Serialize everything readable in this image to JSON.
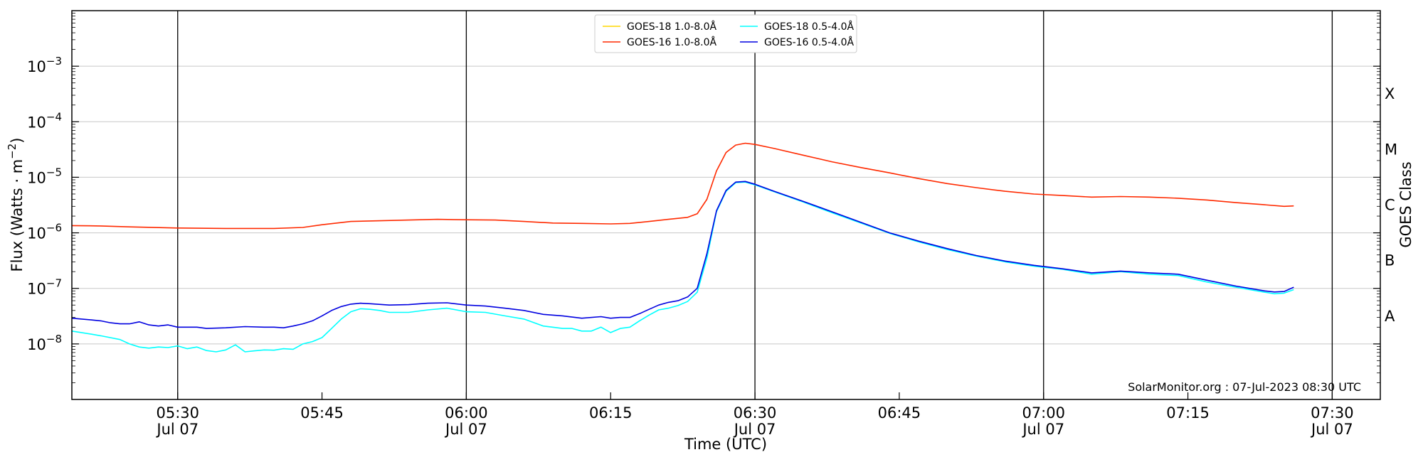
{
  "chart_data": {
    "type": "line",
    "title": "",
    "xlabel": "Time (UTC)",
    "ylabel_main": "Flux (Watts · m",
    "ylabel_sup": "−2",
    "ylabel_close": ")",
    "ylabel_right": "GOES Class",
    "yscale": "log",
    "ylim": [
      1e-09,
      0.01
    ],
    "xlim": [
      "05:19",
      "07:35"
    ],
    "grid": "horizontal",
    "legend_position": "top-center",
    "credit": "SolarMonitor.org : 07-Jul-2023 08:30 UTC",
    "x_ticks": [
      {
        "time": "05:30",
        "label": "05:30",
        "sub": "Jul 07"
      },
      {
        "time": "05:45",
        "label": "05:45",
        "sub": ""
      },
      {
        "time": "06:00",
        "label": "06:00",
        "sub": "Jul 07"
      },
      {
        "time": "06:15",
        "label": "06:15",
        "sub": ""
      },
      {
        "time": "06:30",
        "label": "06:30",
        "sub": "Jul 07"
      },
      {
        "time": "06:45",
        "label": "06:45",
        "sub": ""
      },
      {
        "time": "07:00",
        "label": "07:00",
        "sub": "Jul 07"
      },
      {
        "time": "07:15",
        "label": "07:15",
        "sub": ""
      },
      {
        "time": "07:30",
        "label": "07:30",
        "sub": "Jul 07"
      }
    ],
    "vertical_lines": [
      "05:30",
      "06:00",
      "06:30",
      "07:00",
      "07:30"
    ],
    "y_ticks": [
      {
        "value": 1e-08,
        "base": "10",
        "exp": "−8"
      },
      {
        "value": 1e-07,
        "base": "10",
        "exp": "−7"
      },
      {
        "value": 1e-06,
        "base": "10",
        "exp": "−6"
      },
      {
        "value": 1e-05,
        "base": "10",
        "exp": "−5"
      },
      {
        "value": 0.0001,
        "base": "10",
        "exp": "−4"
      },
      {
        "value": 0.001,
        "base": "10",
        "exp": "−3"
      }
    ],
    "goes_classes": [
      {
        "label": "A",
        "value": 3.16e-08
      },
      {
        "label": "B",
        "value": 3.16e-07
      },
      {
        "label": "C",
        "value": 3.16e-06
      },
      {
        "label": "M",
        "value": 3.16e-05
      },
      {
        "label": "X",
        "value": 0.000316
      }
    ],
    "series": [
      {
        "name": "GOES-18 1.0-8.0Å",
        "color": "#ffd700",
        "points": []
      },
      {
        "name": "GOES-18 0.5-4.0Å",
        "color": "#00ffff",
        "points": [
          [
            "05:19",
            1.7e-08
          ],
          [
            "05:21",
            1.5e-08
          ],
          [
            "05:22",
            1.4e-08
          ],
          [
            "05:24",
            1.2e-08
          ],
          [
            "05:25",
            1e-08
          ],
          [
            "05:26",
            8.8e-09
          ],
          [
            "05:27",
            8.4e-09
          ],
          [
            "05:28",
            8.8e-09
          ],
          [
            "05:29",
            8.6e-09
          ],
          [
            "05:30",
            9.2e-09
          ],
          [
            "05:31",
            8.2e-09
          ],
          [
            "05:32",
            8.8e-09
          ],
          [
            "05:33",
            7.6e-09
          ],
          [
            "05:34",
            7.2e-09
          ],
          [
            "05:35",
            7.8e-09
          ],
          [
            "05:36",
            9.6e-09
          ],
          [
            "05:37",
            7.2e-09
          ],
          [
            "05:38",
            7.5e-09
          ],
          [
            "05:39",
            7.8e-09
          ],
          [
            "05:40",
            7.7e-09
          ],
          [
            "05:41",
            8.2e-09
          ],
          [
            "05:42",
            8e-09
          ],
          [
            "05:43",
            1e-08
          ],
          [
            "05:44",
            1.1e-08
          ],
          [
            "05:45",
            1.3e-08
          ],
          [
            "05:46",
            1.9e-08
          ],
          [
            "05:47",
            2.8e-08
          ],
          [
            "05:48",
            3.8e-08
          ],
          [
            "05:49",
            4.3e-08
          ],
          [
            "05:50",
            4.2e-08
          ],
          [
            "05:51",
            4e-08
          ],
          [
            "05:52",
            3.7e-08
          ],
          [
            "05:54",
            3.7e-08
          ],
          [
            "05:56",
            4.1e-08
          ],
          [
            "05:58",
            4.4e-08
          ],
          [
            "06:00",
            3.8e-08
          ],
          [
            "06:02",
            3.7e-08
          ],
          [
            "06:04",
            3.2e-08
          ],
          [
            "06:06",
            2.8e-08
          ],
          [
            "06:08",
            2.1e-08
          ],
          [
            "06:10",
            1.9e-08
          ],
          [
            "06:11",
            1.9e-08
          ],
          [
            "06:12",
            1.7e-08
          ],
          [
            "06:13",
            1.7e-08
          ],
          [
            "06:14",
            2e-08
          ],
          [
            "06:15",
            1.6e-08
          ],
          [
            "06:16",
            1.9e-08
          ],
          [
            "06:17",
            2e-08
          ],
          [
            "06:18",
            2.6e-08
          ],
          [
            "06:19",
            3.3e-08
          ],
          [
            "06:20",
            4.1e-08
          ],
          [
            "06:21",
            4.4e-08
          ],
          [
            "06:22",
            4.9e-08
          ],
          [
            "06:23",
            5.8e-08
          ],
          [
            "06:24",
            8.5e-08
          ],
          [
            "06:25",
            3.5e-07
          ],
          [
            "06:26",
            2.4e-06
          ],
          [
            "06:27",
            5.6e-06
          ],
          [
            "06:28",
            8e-06
          ],
          [
            "06:29",
            8.2e-06
          ],
          [
            "06:30",
            7.3e-06
          ],
          [
            "06:32",
            5.5e-06
          ],
          [
            "06:35",
            3.6e-06
          ],
          [
            "06:38",
            2.3e-06
          ],
          [
            "06:41",
            1.5e-06
          ],
          [
            "06:44",
            9.8e-07
          ],
          [
            "06:47",
            6.9e-07
          ],
          [
            "06:50",
            5e-07
          ],
          [
            "06:53",
            3.8e-07
          ],
          [
            "06:56",
            3e-07
          ],
          [
            "06:59",
            2.5e-07
          ],
          [
            "07:02",
            2.2e-07
          ],
          [
            "07:05",
            1.8e-07
          ],
          [
            "07:08",
            2e-07
          ],
          [
            "07:11",
            1.8e-07
          ],
          [
            "07:14",
            1.7e-07
          ],
          [
            "07:17",
            1.3e-07
          ],
          [
            "07:20",
            1.05e-07
          ],
          [
            "07:23",
            8.5e-08
          ],
          [
            "07:24",
            8e-08
          ],
          [
            "07:25",
            8.2e-08
          ],
          [
            "07:26",
            9.5e-08
          ]
        ]
      },
      {
        "name": "GOES-16 1.0-8.0Å",
        "color": "#ff2a00",
        "points": [
          [
            "05:19",
            1.35e-06
          ],
          [
            "05:22",
            1.33e-06
          ],
          [
            "05:25",
            1.28e-06
          ],
          [
            "05:30",
            1.22e-06
          ],
          [
            "05:35",
            1.2e-06
          ],
          [
            "05:40",
            1.2e-06
          ],
          [
            "05:43",
            1.25e-06
          ],
          [
            "05:45",
            1.4e-06
          ],
          [
            "05:48",
            1.6e-06
          ],
          [
            "05:51",
            1.65e-06
          ],
          [
            "05:54",
            1.7e-06
          ],
          [
            "05:57",
            1.75e-06
          ],
          [
            "06:00",
            1.72e-06
          ],
          [
            "06:03",
            1.7e-06
          ],
          [
            "06:06",
            1.6e-06
          ],
          [
            "06:09",
            1.5e-06
          ],
          [
            "06:12",
            1.48e-06
          ],
          [
            "06:15",
            1.45e-06
          ],
          [
            "06:17",
            1.48e-06
          ],
          [
            "06:19",
            1.6e-06
          ],
          [
            "06:21",
            1.75e-06
          ],
          [
            "06:23",
            1.9e-06
          ],
          [
            "06:24",
            2.2e-06
          ],
          [
            "06:25",
            4e-06
          ],
          [
            "06:26",
            1.3e-05
          ],
          [
            "06:27",
            2.8e-05
          ],
          [
            "06:28",
            3.8e-05
          ],
          [
            "06:29",
            4.1e-05
          ],
          [
            "06:30",
            3.9e-05
          ],
          [
            "06:32",
            3.3e-05
          ],
          [
            "06:35",
            2.5e-05
          ],
          [
            "06:38",
            1.9e-05
          ],
          [
            "06:41",
            1.5e-05
          ],
          [
            "06:44",
            1.2e-05
          ],
          [
            "06:47",
            9.5e-06
          ],
          [
            "06:50",
            7.7e-06
          ],
          [
            "06:53",
            6.5e-06
          ],
          [
            "06:56",
            5.6e-06
          ],
          [
            "06:59",
            5e-06
          ],
          [
            "07:02",
            4.7e-06
          ],
          [
            "07:05",
            4.4e-06
          ],
          [
            "07:08",
            4.5e-06
          ],
          [
            "07:11",
            4.4e-06
          ],
          [
            "07:14",
            4.2e-06
          ],
          [
            "07:17",
            3.9e-06
          ],
          [
            "07:20",
            3.5e-06
          ],
          [
            "07:23",
            3.2e-06
          ],
          [
            "07:25",
            3e-06
          ],
          [
            "07:26",
            3.05e-06
          ]
        ]
      },
      {
        "name": "GOES-16 0.5-4.0Å",
        "color": "#0000e0",
        "points": [
          [
            "05:19",
            2.9e-08
          ],
          [
            "05:21",
            2.7e-08
          ],
          [
            "05:22",
            2.6e-08
          ],
          [
            "05:23",
            2.4e-08
          ],
          [
            "05:24",
            2.3e-08
          ],
          [
            "05:25",
            2.3e-08
          ],
          [
            "05:26",
            2.5e-08
          ],
          [
            "05:27",
            2.2e-08
          ],
          [
            "05:28",
            2.1e-08
          ],
          [
            "05:29",
            2.2e-08
          ],
          [
            "05:30",
            2e-08
          ],
          [
            "05:31",
            2e-08
          ],
          [
            "05:32",
            2e-08
          ],
          [
            "05:33",
            1.9e-08
          ],
          [
            "05:35",
            1.95e-08
          ],
          [
            "05:37",
            2.05e-08
          ],
          [
            "05:39",
            2e-08
          ],
          [
            "05:40",
            2e-08
          ],
          [
            "05:41",
            1.95e-08
          ],
          [
            "05:42",
            2.1e-08
          ],
          [
            "05:43",
            2.3e-08
          ],
          [
            "05:44",
            2.6e-08
          ],
          [
            "05:45",
            3.2e-08
          ],
          [
            "05:46",
            4e-08
          ],
          [
            "05:47",
            4.7e-08
          ],
          [
            "05:48",
            5.2e-08
          ],
          [
            "05:49",
            5.4e-08
          ],
          [
            "05:50",
            5.3e-08
          ],
          [
            "05:52",
            5e-08
          ],
          [
            "05:54",
            5.1e-08
          ],
          [
            "05:56",
            5.4e-08
          ],
          [
            "05:58",
            5.5e-08
          ],
          [
            "06:00",
            5e-08
          ],
          [
            "06:02",
            4.8e-08
          ],
          [
            "06:04",
            4.4e-08
          ],
          [
            "06:06",
            4e-08
          ],
          [
            "06:08",
            3.4e-08
          ],
          [
            "06:10",
            3.2e-08
          ],
          [
            "06:12",
            2.9e-08
          ],
          [
            "06:14",
            3.1e-08
          ],
          [
            "06:15",
            2.9e-08
          ],
          [
            "06:16",
            3e-08
          ],
          [
            "06:17",
            3e-08
          ],
          [
            "06:18",
            3.5e-08
          ],
          [
            "06:19",
            4.2e-08
          ],
          [
            "06:20",
            5e-08
          ],
          [
            "06:21",
            5.6e-08
          ],
          [
            "06:22",
            6e-08
          ],
          [
            "06:23",
            7e-08
          ],
          [
            "06:24",
            1e-07
          ],
          [
            "06:25",
            4.2e-07
          ],
          [
            "06:26",
            2.5e-06
          ],
          [
            "06:27",
            5.8e-06
          ],
          [
            "06:28",
            8.2e-06
          ],
          [
            "06:29",
            8.4e-06
          ],
          [
            "06:30",
            7.5e-06
          ],
          [
            "06:32",
            5.6e-06
          ],
          [
            "06:35",
            3.7e-06
          ],
          [
            "06:38",
            2.4e-06
          ],
          [
            "06:41",
            1.55e-06
          ],
          [
            "06:44",
            1e-06
          ],
          [
            "06:47",
            7.1e-07
          ],
          [
            "06:50",
            5.2e-07
          ],
          [
            "06:53",
            3.9e-07
          ],
          [
            "06:56",
            3.1e-07
          ],
          [
            "06:59",
            2.6e-07
          ],
          [
            "07:02",
            2.25e-07
          ],
          [
            "07:05",
            1.9e-07
          ],
          [
            "07:08",
            2.05e-07
          ],
          [
            "07:11",
            1.9e-07
          ],
          [
            "07:14",
            1.8e-07
          ],
          [
            "07:17",
            1.4e-07
          ],
          [
            "07:20",
            1.1e-07
          ],
          [
            "07:23",
            9e-08
          ],
          [
            "07:24",
            8.6e-08
          ],
          [
            "07:25",
            8.8e-08
          ],
          [
            "07:26",
            1.05e-07
          ]
        ]
      }
    ]
  }
}
